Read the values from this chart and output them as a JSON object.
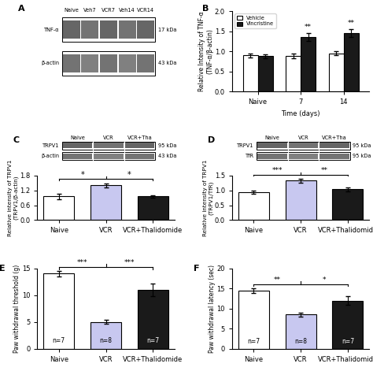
{
  "panel_B": {
    "groups": [
      "Naive",
      "7",
      "14"
    ],
    "vehicle_means": [
      0.9,
      0.88,
      0.95
    ],
    "vehicle_errors": [
      0.05,
      0.06,
      0.05
    ],
    "vincristine_means": [
      0.88,
      1.35,
      1.45
    ],
    "vincristine_errors": [
      0.05,
      0.1,
      0.1
    ],
    "ylabel": "Relative Intensity of TNF-α\n(TNF-α/β-actin)",
    "xlabel": "Time (days)",
    "ylim": [
      0.0,
      2.0
    ],
    "yticks": [
      0.0,
      0.5,
      1.0,
      1.5,
      2.0
    ],
    "sig_vincristine": [
      "",
      "**",
      "**"
    ],
    "vincristine_color": "#1a1a1a",
    "title": "B"
  },
  "panel_C": {
    "groups": [
      "Naive",
      "VCR",
      "VCR+Thalidomide"
    ],
    "means": [
      0.95,
      1.4,
      0.95
    ],
    "errors": [
      0.12,
      0.08,
      0.06
    ],
    "colors": [
      "white",
      "#c8c8f0",
      "#1a1a1a"
    ],
    "ylabel": "Relative intensity of TRPV1\n(TRPV1/β-actin)",
    "ylim": [
      0.0,
      1.8
    ],
    "yticks": [
      0.0,
      0.6,
      1.2,
      1.8
    ],
    "title": "C",
    "bracket_left_sig": "*",
    "bracket_right_sig": "*"
  },
  "panel_D": {
    "groups": [
      "Naive",
      "VCR",
      "VCR+Thalidomide"
    ],
    "means": [
      0.93,
      1.32,
      1.03
    ],
    "errors": [
      0.05,
      0.06,
      0.07
    ],
    "colors": [
      "white",
      "#c8c8f0",
      "#1a1a1a"
    ],
    "ylabel": "Relative intensity of TRPV1\n(TRPV1/TfR)",
    "ylim": [
      0.0,
      1.5
    ],
    "yticks": [
      0.0,
      0.5,
      1.0,
      1.5
    ],
    "title": "D",
    "bracket_left_sig": "***",
    "bracket_right_sig": "**"
  },
  "panel_E": {
    "groups": [
      "Naive",
      "VCR",
      "VCR+Thalidomide"
    ],
    "means": [
      14.0,
      5.0,
      11.0
    ],
    "errors": [
      0.5,
      0.4,
      1.2
    ],
    "colors": [
      "white",
      "#c8c8f0",
      "#1a1a1a"
    ],
    "ylabel": "Paw withdrawal threshold (g)",
    "ylim": [
      0,
      15
    ],
    "yticks": [
      0,
      5,
      10,
      15
    ],
    "ns": [
      "n=7",
      "n=8",
      "n=7"
    ],
    "title": "E",
    "bracket_left_sig": "***",
    "bracket_right_sig": "***"
  },
  "panel_F": {
    "groups": [
      "Naive",
      "VCR",
      "VCR+Thalidomide"
    ],
    "means": [
      14.5,
      8.5,
      12.0
    ],
    "errors": [
      0.6,
      0.5,
      1.0
    ],
    "colors": [
      "white",
      "#c8c8f0",
      "#1a1a1a"
    ],
    "ylabel": "Paw withdrawal latency (sec)",
    "ylim": [
      0,
      20
    ],
    "yticks": [
      0,
      5,
      10,
      15,
      20
    ],
    "ns": [
      "n=7",
      "n=8",
      "n=7"
    ],
    "title": "F",
    "bracket_left_sig": "**",
    "bracket_right_sig": "*"
  },
  "wb_A": {
    "title": "A",
    "labels": [
      "Naive",
      "Veh7",
      "VCR7",
      "Veh14",
      "VCR14"
    ],
    "bands": [
      "TNF-α",
      "β-actin"
    ],
    "kda": [
      "17 kDa",
      "43 kDa"
    ],
    "n_lanes": 5
  },
  "wb_C": {
    "labels": [
      "Naive",
      "VCR",
      "VCR+Tha"
    ],
    "bands": [
      "TRPV1",
      "β-actin"
    ],
    "kda": [
      "95 kDa",
      "43 kDa"
    ],
    "n_lanes": 3
  },
  "wb_D": {
    "labels": [
      "Naive",
      "VCR",
      "VCR+Tha"
    ],
    "bands": [
      "TRPV1",
      "TfR"
    ],
    "kda": [
      "95 kDa",
      "95 kDa"
    ],
    "n_lanes": 3
  }
}
